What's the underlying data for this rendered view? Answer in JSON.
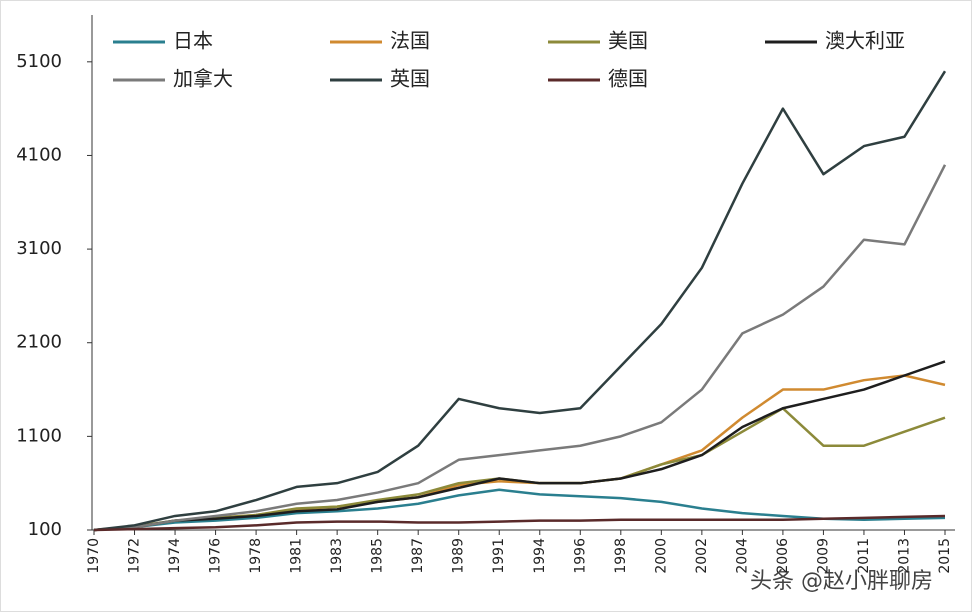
{
  "chart_data": {
    "type": "line",
    "categories": [
      "1970",
      "1972",
      "1974",
      "1976",
      "1978",
      "1981",
      "1983",
      "1985",
      "1987",
      "1989",
      "1991",
      "1994",
      "1996",
      "1998",
      "2000",
      "2002",
      "2004",
      "2006",
      "2009",
      "2011",
      "2013",
      "2015"
    ],
    "series": [
      {
        "name": "日本",
        "color": "#2a7f8f",
        "values": [
          100,
          130,
          180,
          200,
          230,
          280,
          300,
          330,
          380,
          470,
          530,
          480,
          460,
          440,
          400,
          330,
          280,
          250,
          220,
          210,
          220,
          230
        ]
      },
      {
        "name": "法国",
        "color": "#d08a30",
        "values": [
          100,
          130,
          200,
          230,
          260,
          320,
          350,
          400,
          450,
          580,
          620,
          600,
          600,
          650,
          800,
          950,
          1300,
          1600,
          1600,
          1700,
          1750,
          1650
        ]
      },
      {
        "name": "美国",
        "color": "#8c8a3a",
        "values": [
          100,
          140,
          200,
          230,
          260,
          330,
          350,
          420,
          480,
          600,
          650,
          600,
          600,
          650,
          800,
          900,
          1150,
          1400,
          1000,
          1000,
          1150,
          1300
        ]
      },
      {
        "name": "澳大利亚",
        "color": "#1e1e1e",
        "values": [
          100,
          130,
          200,
          220,
          250,
          300,
          320,
          400,
          450,
          550,
          650,
          600,
          600,
          650,
          750,
          900,
          1200,
          1400,
          1500,
          1600,
          1750,
          1900
        ]
      },
      {
        "name": "加拿大",
        "color": "#7a7a7a",
        "values": [
          100,
          130,
          200,
          250,
          300,
          380,
          420,
          500,
          600,
          850,
          900,
          950,
          1000,
          1100,
          1250,
          1600,
          2200,
          2400,
          2700,
          3200,
          3150,
          4000
        ]
      },
      {
        "name": "英国",
        "color": "#2f3f40",
        "values": [
          100,
          150,
          250,
          300,
          420,
          560,
          600,
          720,
          1000,
          1500,
          1400,
          1350,
          1400,
          1850,
          2300,
          2900,
          3800,
          4600,
          3900,
          4200,
          4300,
          5000
        ]
      },
      {
        "name": "德国",
        "color": "#5a2a2a",
        "values": [
          100,
          110,
          120,
          130,
          150,
          180,
          190,
          190,
          180,
          180,
          190,
          200,
          200,
          210,
          210,
          210,
          210,
          210,
          220,
          230,
          240,
          250
        ]
      }
    ],
    "ylim": [
      100,
      5600
    ],
    "yticks": [
      100,
      1100,
      2100,
      3100,
      4100,
      5100
    ],
    "watermark": "头条 @赵小胖聊房"
  }
}
